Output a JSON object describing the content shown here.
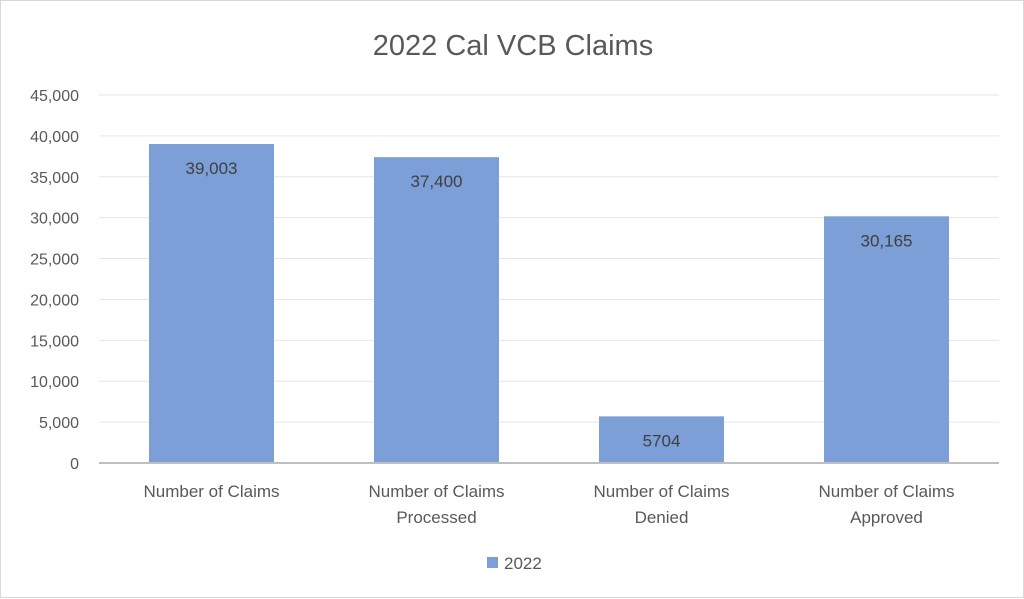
{
  "chart_data": {
    "type": "bar",
    "title": "2022 Cal VCB Claims",
    "categories": [
      [
        "Number of Claims"
      ],
      [
        "Number of Claims",
        "Processed"
      ],
      [
        "Number of Claims",
        "Denied"
      ],
      [
        "Number of Claims",
        "Approved"
      ]
    ],
    "series": [
      {
        "name": "2022",
        "color": "#7b9fd6",
        "values": [
          39003,
          37400,
          5704,
          30165
        ],
        "data_labels": [
          "39,003",
          "37,400",
          "5704",
          "30,165"
        ]
      }
    ],
    "ylim": [
      0,
      45000
    ],
    "y_ticks": [
      0,
      5000,
      10000,
      15000,
      20000,
      25000,
      30000,
      35000,
      40000,
      45000
    ],
    "y_tick_labels": [
      "0",
      "5,000",
      "10,000",
      "15,000",
      "20,000",
      "25,000",
      "30,000",
      "35,000",
      "40,000",
      "45,000"
    ],
    "grid": true,
    "legend_position": "bottom"
  }
}
